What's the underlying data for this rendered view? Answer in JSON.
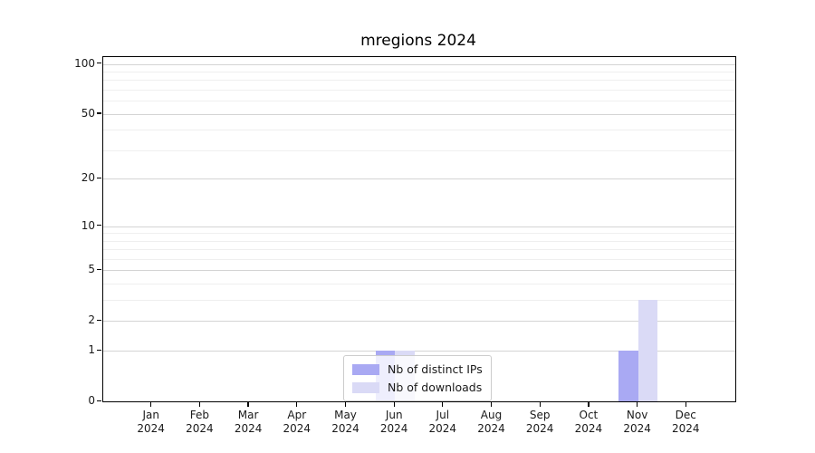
{
  "title": "mregions 2024",
  "chart_data": {
    "type": "bar",
    "title": "mregions 2024",
    "scale": "log1p",
    "categories": [
      "Jan",
      "Feb",
      "Mar",
      "Apr",
      "May",
      "Jun",
      "Jul",
      "Aug",
      "Sep",
      "Oct",
      "Nov",
      "Dec"
    ],
    "category_year": "2024",
    "series": [
      {
        "name": "Nb of distinct IPs",
        "color": "#a9a9f3",
        "values": [
          0,
          0,
          0,
          0,
          0,
          1,
          0,
          0,
          0,
          0,
          1,
          0
        ]
      },
      {
        "name": "Nb of downloads",
        "color": "#dadaf6",
        "values": [
          0,
          0,
          0,
          0,
          0,
          1,
          0,
          0,
          0,
          0,
          3,
          0
        ]
      }
    ],
    "yticks": [
      0,
      1,
      2,
      5,
      10,
      20,
      50,
      100
    ],
    "minor_yticks": [
      3,
      4,
      6,
      7,
      8,
      9,
      30,
      40,
      60,
      70,
      80,
      90
    ],
    "ylim": [
      0,
      110
    ],
    "xlabel": "",
    "ylabel": "",
    "grid": true,
    "legend_position": "bottom-center"
  },
  "colors": {
    "background": "#ffffff",
    "spine": "#000000",
    "grid_major": "#d4d4d4",
    "grid_minor": "#efefef",
    "text": "#1a1a1a"
  }
}
